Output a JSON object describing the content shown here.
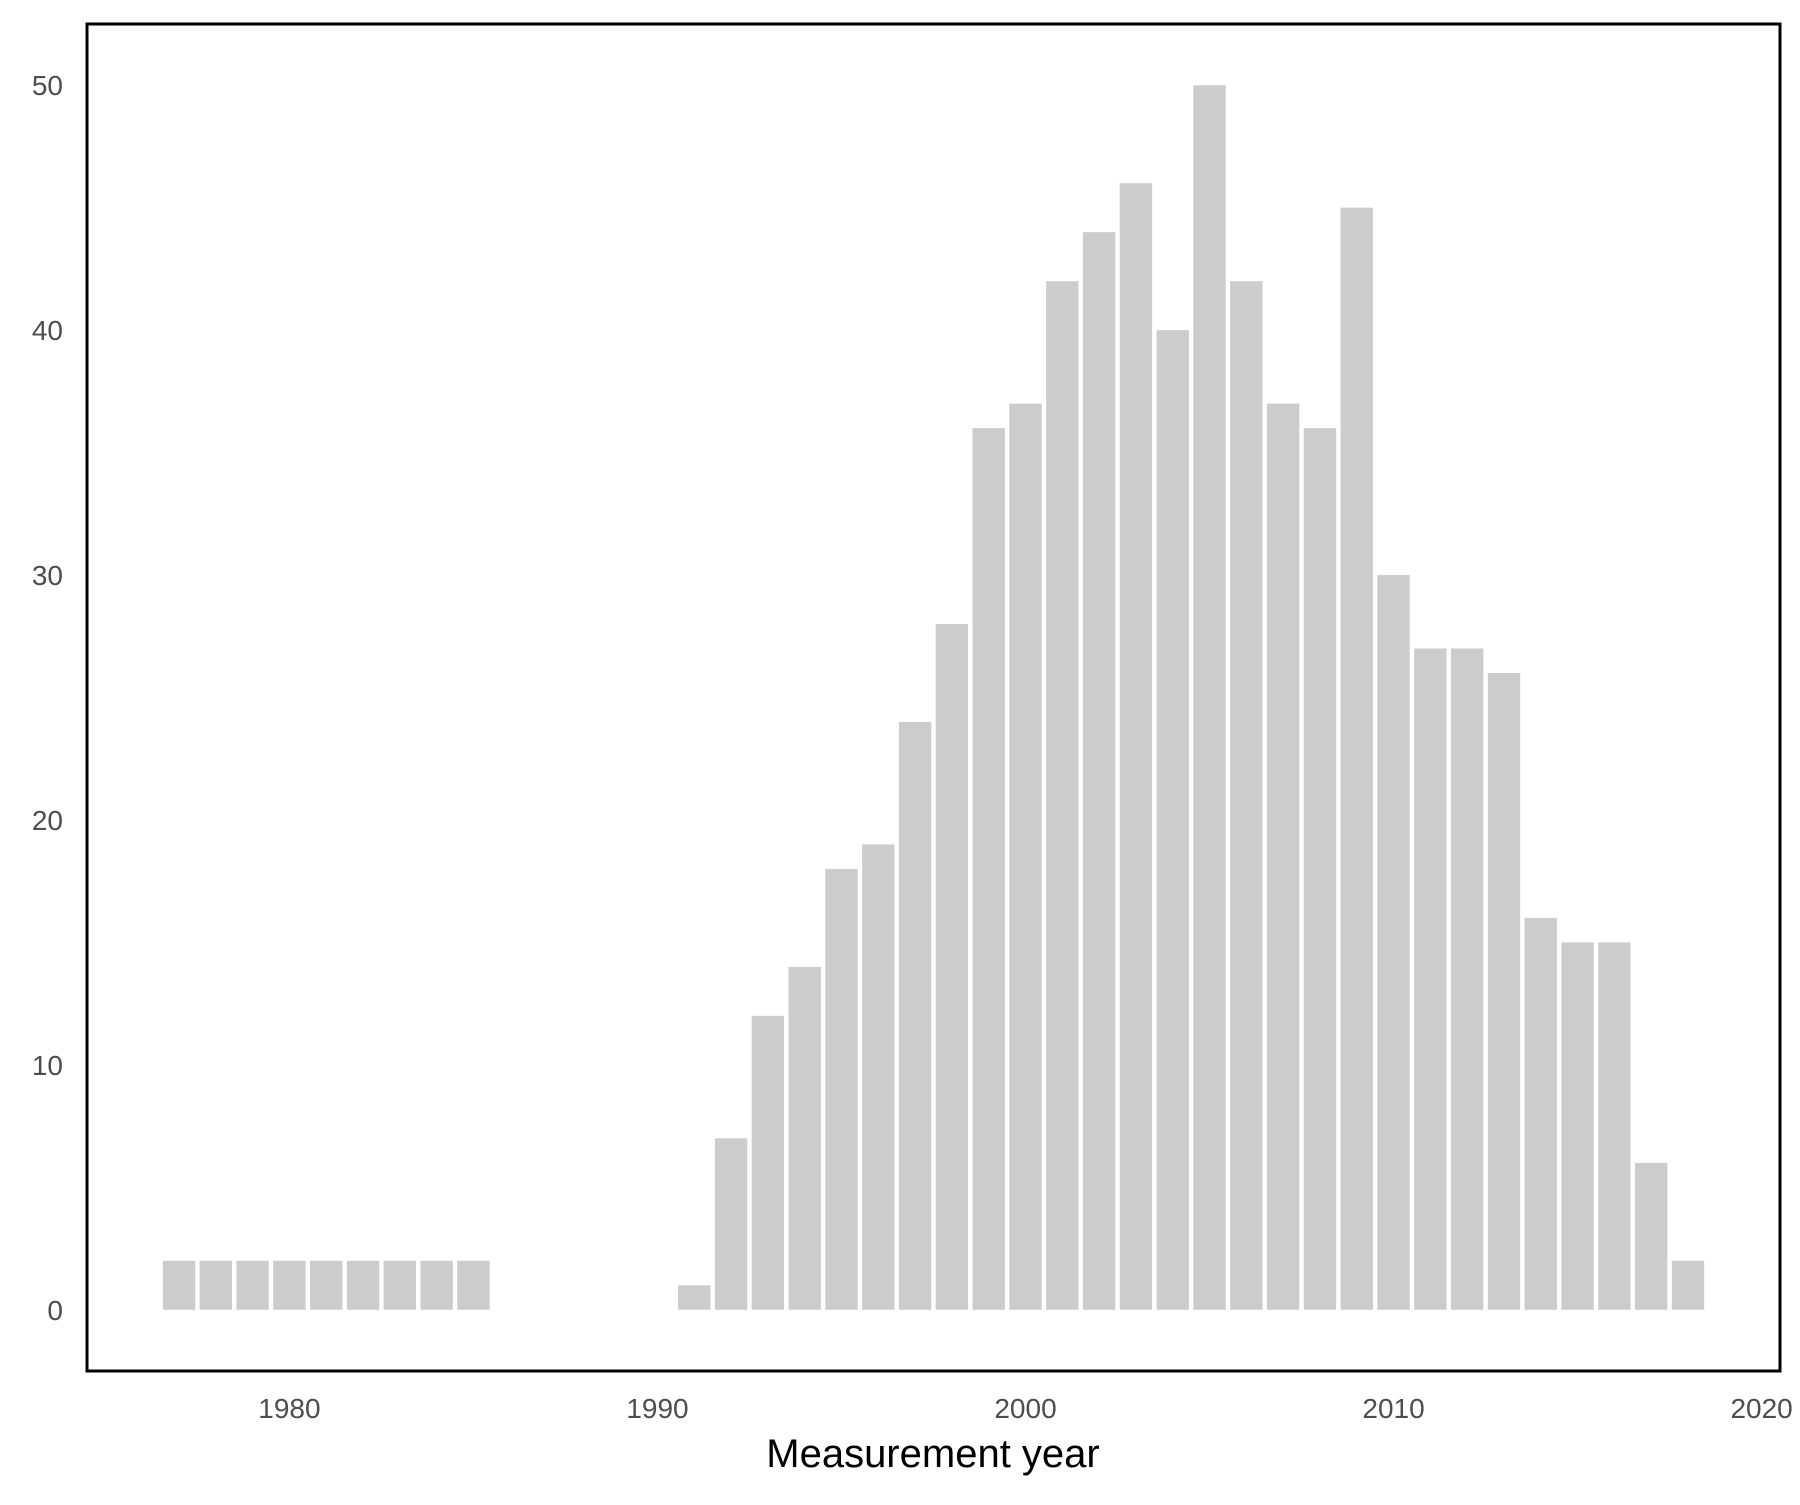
{
  "chart_data": {
    "type": "bar",
    "title": "",
    "xlabel": "Measurement year",
    "ylabel": "",
    "xlim": [
      1974.5,
      2020.5
    ],
    "ylim": [
      -2.5,
      52.5
    ],
    "grid": false,
    "bar_color": "#cccccc",
    "frame_color": "#000000",
    "tick_label_color": "#4d4d4d",
    "x_ticks": [
      1980,
      1990,
      2000,
      2010,
      2020
    ],
    "y_ticks": [
      0,
      10,
      20,
      30,
      40,
      50
    ],
    "x": [
      1977,
      1978,
      1979,
      1980,
      1981,
      1982,
      1983,
      1984,
      1985,
      1991,
      1992,
      1993,
      1994,
      1995,
      1996,
      1997,
      1998,
      1999,
      2000,
      2001,
      2002,
      2003,
      2004,
      2005,
      2006,
      2007,
      2008,
      2009,
      2010,
      2011,
      2012,
      2013,
      2014,
      2015,
      2016,
      2017,
      2018
    ],
    "values": [
      2,
      2,
      2,
      2,
      2,
      2,
      2,
      2,
      2,
      1,
      7,
      12,
      14,
      18,
      19,
      24,
      28,
      36,
      37,
      42,
      44,
      46,
      40,
      50,
      42,
      37,
      36,
      45,
      30,
      27,
      27,
      26,
      16,
      15,
      15,
      6,
      2
    ]
  }
}
